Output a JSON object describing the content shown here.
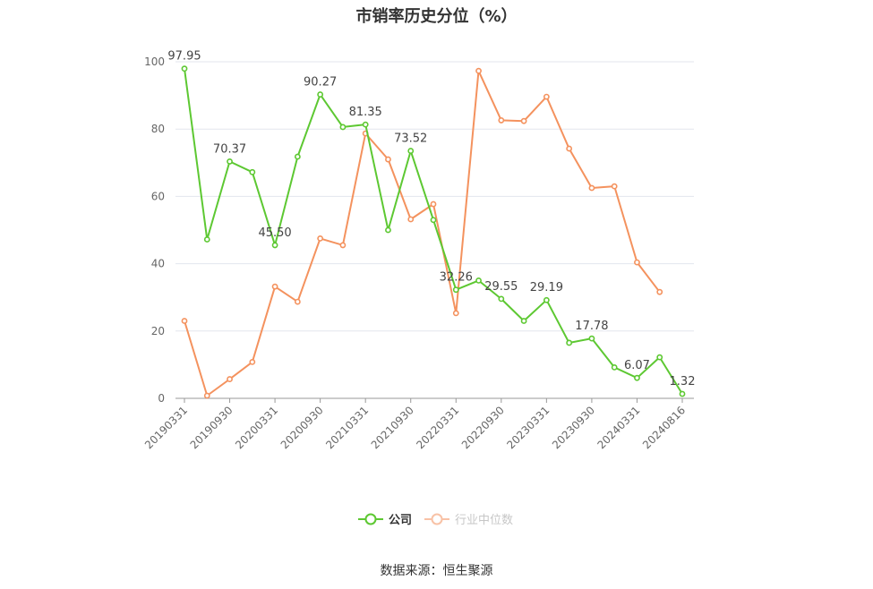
{
  "chart_data": {
    "type": "line",
    "title": "市销率历史分位（%）",
    "ylim": [
      0,
      100
    ],
    "y_ticks": [
      0,
      20,
      40,
      60,
      80,
      100
    ],
    "x": [
      "20190331",
      "20190630",
      "20190930",
      "20191231",
      "20200331",
      "20200630",
      "20200930",
      "20201231",
      "20210331",
      "20210630",
      "20210930",
      "20211231",
      "20220331",
      "20220630",
      "20220930",
      "20221231",
      "20230331",
      "20230630",
      "20230930",
      "20231231",
      "20240331",
      "20240630",
      "20240816"
    ],
    "x_tick_labels": [
      "20190331",
      "20190930",
      "20200331",
      "20200930",
      "20210331",
      "20210930",
      "20220331",
      "20220930",
      "20230331",
      "20230930",
      "20240331",
      "20240816"
    ],
    "grid": true,
    "legend_position": "bottom",
    "series": [
      {
        "name": "公司",
        "color": "#5dc832",
        "values": [
          97.95,
          47.2,
          70.37,
          67.2,
          45.5,
          71.8,
          90.27,
          80.6,
          81.35,
          50.0,
          73.52,
          53.0,
          32.26,
          35.0,
          29.55,
          23.0,
          29.19,
          16.5,
          17.78,
          9.2,
          6.07,
          12.2,
          1.32
        ],
        "labels": [
          "97.95",
          "",
          "70.37",
          "",
          "45.50",
          "",
          "90.27",
          "",
          "81.35",
          "",
          "73.52",
          "",
          "32.26",
          "",
          "29.55",
          "",
          "29.19",
          "",
          "17.78",
          "",
          "6.07",
          "",
          "1.32"
        ]
      },
      {
        "name": "行业中位数",
        "color": "#f4925e",
        "values": [
          23.0,
          0.8,
          5.7,
          10.8,
          33.2,
          28.7,
          47.5,
          45.5,
          78.7,
          71.0,
          53.2,
          57.7,
          25.3,
          97.3,
          82.6,
          82.4,
          89.6,
          74.2,
          62.5,
          63.0,
          40.4,
          31.6,
          null
        ]
      }
    ]
  },
  "source_text": "数据来源：恒生聚源"
}
